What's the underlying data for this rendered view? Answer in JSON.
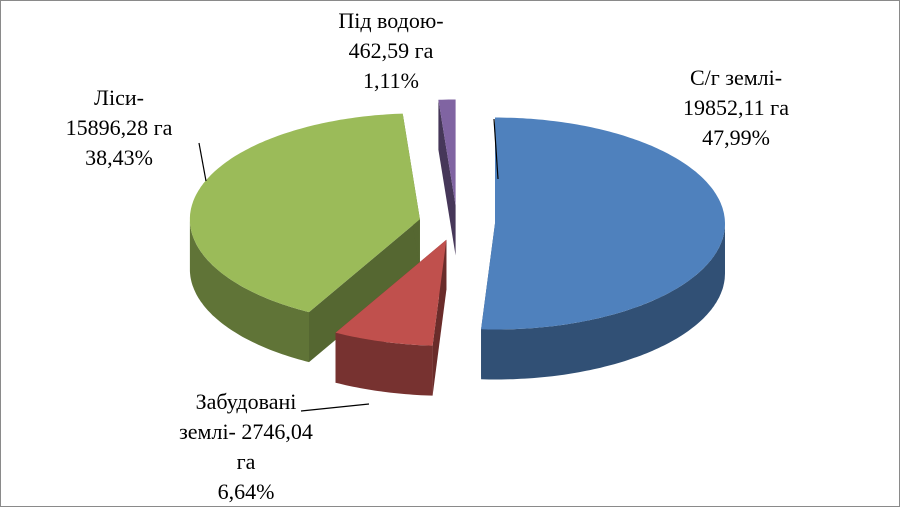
{
  "chart_data": {
    "type": "pie",
    "categories": [
      "С/г землі-",
      "Забудовані землі-",
      "Ліси-",
      "Під водою-"
    ],
    "values": [
      19852.11,
      2746.04,
      15896.28,
      462.59
    ],
    "value_labels": [
      "19852,11 га",
      "2746,04 га",
      "15896,28 га",
      "462,59 га"
    ],
    "percentages": [
      47.99,
      6.64,
      38.43,
      1.11
    ],
    "percentage_labels": [
      "47,99%",
      "6,64%",
      "38,43%",
      "1,11%"
    ],
    "colors": [
      "#4f81bd",
      "#c0504d",
      "#9bbb59",
      "#8064a2"
    ]
  }
}
